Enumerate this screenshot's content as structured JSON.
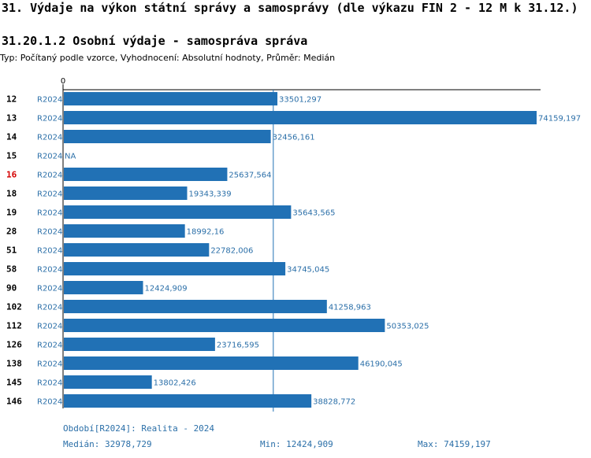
{
  "page": {
    "title": "31. Výdaje na výkon státní správy a samosprávy (dle výkazu FIN 2 - 12 M k 31.12.)",
    "subtitle": "31.20.1.2 Osobní výdaje - samospráva správa",
    "type_line": "Typ: Počítaný podle vzorce, Vyhodnocení: Absolutní hodnoty, Průměr: Medián"
  },
  "colors": {
    "bar": "#2171b5",
    "link": "#2b6fa8",
    "highlight_category": "#d40000",
    "axis": "#000000"
  },
  "chart_data": {
    "type": "bar",
    "orientation": "horizontal",
    "axis_zero_label": "0",
    "period_label": "R2024",
    "xlim": [
      0,
      74159.197
    ],
    "median_line": 32978.729,
    "categories": [
      "12",
      "13",
      "14",
      "15",
      "16",
      "18",
      "19",
      "28",
      "51",
      "58",
      "90",
      "102",
      "112",
      "126",
      "138",
      "145",
      "146"
    ],
    "highlight": "16",
    "values": [
      33501.297,
      74159.197,
      32456.161,
      null,
      25637.564,
      19343.339,
      35643.565,
      18992.16,
      22782.006,
      34745.045,
      12424.909,
      41258.963,
      50353.025,
      23716.595,
      46190.045,
      13802.426,
      38828.772
    ],
    "value_labels": [
      "33501,297",
      "74159,197",
      "32456,161",
      "NA",
      "25637,564",
      "19343,339",
      "35643,565",
      "18992,16",
      "22782,006",
      "34745,045",
      "12424,909",
      "41258,963",
      "50353,025",
      "23716,595",
      "46190,045",
      "13802,426",
      "38828,772"
    ]
  },
  "footer": {
    "period": "Období[R2024]: Realita - 2024",
    "median": "Medián: 32978,729",
    "min": "Min: 12424,909",
    "max": "Max: 74159,197"
  }
}
